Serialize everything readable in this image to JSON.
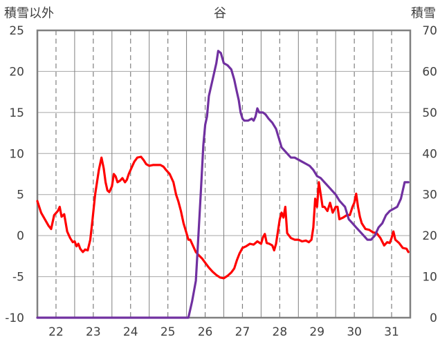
{
  "chart_data": {
    "type": "line",
    "title": "谷",
    "left_axis_label": "積雪以外",
    "right_axis_label": "積雪",
    "left_ylim": [
      -10,
      25
    ],
    "left_yticks": [
      -10,
      -5,
      0,
      5,
      10,
      15,
      20,
      25
    ],
    "right_ylim": [
      0,
      70
    ],
    "right_yticks": [
      0,
      10,
      20,
      30,
      40,
      50,
      60,
      70
    ],
    "xlim": [
      21.5,
      31.5
    ],
    "xticks": [
      22,
      23,
      24,
      25,
      26,
      27,
      28,
      29,
      30,
      31
    ],
    "grid": "dashed vertical, solid horizontal",
    "series": [
      {
        "axis": "left",
        "color": "#ff0000",
        "points": [
          [
            21.5,
            4.2
          ],
          [
            21.6,
            2.8
          ],
          [
            21.7,
            2.0
          ],
          [
            21.8,
            1.2
          ],
          [
            21.87,
            0.8
          ],
          [
            21.95,
            2.5
          ],
          [
            22.05,
            3.0
          ],
          [
            22.1,
            3.5
          ],
          [
            22.15,
            2.3
          ],
          [
            22.22,
            2.6
          ],
          [
            22.3,
            0.5
          ],
          [
            22.38,
            -0.3
          ],
          [
            22.45,
            -0.8
          ],
          [
            22.5,
            -0.7
          ],
          [
            22.55,
            -1.3
          ],
          [
            22.6,
            -1.0
          ],
          [
            22.65,
            -1.6
          ],
          [
            22.72,
            -2.0
          ],
          [
            22.78,
            -1.7
          ],
          [
            22.85,
            -1.8
          ],
          [
            22.92,
            -0.5
          ],
          [
            22.98,
            2.0
          ],
          [
            23.05,
            5.0
          ],
          [
            23.1,
            6.5
          ],
          [
            23.15,
            8.0
          ],
          [
            23.22,
            9.5
          ],
          [
            23.28,
            8.2
          ],
          [
            23.33,
            6.5
          ],
          [
            23.38,
            5.5
          ],
          [
            23.43,
            5.3
          ],
          [
            23.5,
            6.0
          ],
          [
            23.55,
            7.5
          ],
          [
            23.6,
            7.2
          ],
          [
            23.65,
            6.5
          ],
          [
            23.72,
            6.7
          ],
          [
            23.78,
            7.0
          ],
          [
            23.85,
            6.5
          ],
          [
            23.9,
            6.8
          ],
          [
            23.95,
            7.5
          ],
          [
            24.02,
            8.2
          ],
          [
            24.1,
            9.0
          ],
          [
            24.18,
            9.5
          ],
          [
            24.28,
            9.6
          ],
          [
            24.35,
            9.2
          ],
          [
            24.42,
            8.7
          ],
          [
            24.5,
            8.5
          ],
          [
            24.6,
            8.6
          ],
          [
            24.7,
            8.6
          ],
          [
            24.8,
            8.6
          ],
          [
            24.88,
            8.4
          ],
          [
            24.95,
            8.0
          ],
          [
            25.05,
            7.5
          ],
          [
            25.15,
            6.5
          ],
          [
            25.22,
            5.0
          ],
          [
            25.28,
            4.2
          ],
          [
            25.35,
            3.0
          ],
          [
            25.42,
            1.5
          ],
          [
            25.5,
            0.3
          ],
          [
            25.55,
            -0.5
          ],
          [
            25.6,
            -0.5
          ],
          [
            25.68,
            -1.3
          ],
          [
            25.75,
            -2.0
          ],
          [
            25.83,
            -2.4
          ],
          [
            25.92,
            -2.8
          ],
          [
            26.0,
            -3.3
          ],
          [
            26.1,
            -3.9
          ],
          [
            26.2,
            -4.4
          ],
          [
            26.3,
            -4.8
          ],
          [
            26.4,
            -5.1
          ],
          [
            26.5,
            -5.2
          ],
          [
            26.6,
            -4.9
          ],
          [
            26.7,
            -4.5
          ],
          [
            26.78,
            -4.0
          ],
          [
            26.85,
            -3.0
          ],
          [
            26.92,
            -2.2
          ],
          [
            27.0,
            -1.5
          ],
          [
            27.1,
            -1.3
          ],
          [
            27.2,
            -1.0
          ],
          [
            27.3,
            -1.1
          ],
          [
            27.4,
            -0.7
          ],
          [
            27.5,
            -1.0
          ],
          [
            27.55,
            -0.2
          ],
          [
            27.6,
            0.2
          ],
          [
            27.65,
            -0.9
          ],
          [
            27.72,
            -1.0
          ],
          [
            27.8,
            -1.2
          ],
          [
            27.85,
            -1.8
          ],
          [
            27.9,
            -1.0
          ],
          [
            27.95,
            0.5
          ],
          [
            28.0,
            2.0
          ],
          [
            28.05,
            2.8
          ],
          [
            28.1,
            2.2
          ],
          [
            28.15,
            3.5
          ],
          [
            28.2,
            0.3
          ],
          [
            28.25,
            0.0
          ],
          [
            28.3,
            -0.3
          ],
          [
            28.4,
            -0.5
          ],
          [
            28.5,
            -0.5
          ],
          [
            28.6,
            -0.7
          ],
          [
            28.7,
            -0.6
          ],
          [
            28.78,
            -0.8
          ],
          [
            28.85,
            -0.5
          ],
          [
            28.9,
            1.0
          ],
          [
            28.95,
            4.5
          ],
          [
            29.0,
            3.5
          ],
          [
            29.05,
            6.5
          ],
          [
            29.1,
            5.0
          ],
          [
            29.15,
            3.5
          ],
          [
            29.2,
            3.5
          ],
          [
            29.28,
            3.0
          ],
          [
            29.35,
            4.0
          ],
          [
            29.42,
            2.8
          ],
          [
            29.5,
            3.5
          ],
          [
            29.55,
            3.5
          ],
          [
            29.6,
            2.0
          ],
          [
            29.7,
            2.2
          ],
          [
            29.8,
            2.5
          ],
          [
            29.88,
            2.5
          ],
          [
            29.95,
            3.5
          ],
          [
            30.0,
            4.0
          ],
          [
            30.05,
            5.1
          ],
          [
            30.1,
            3.5
          ],
          [
            30.15,
            2.3
          ],
          [
            30.2,
            1.5
          ],
          [
            30.3,
            0.8
          ],
          [
            30.4,
            0.7
          ],
          [
            30.5,
            0.4
          ],
          [
            30.6,
            0.3
          ],
          [
            30.7,
            -0.3
          ],
          [
            30.8,
            -1.2
          ],
          [
            30.88,
            -0.8
          ],
          [
            30.95,
            -0.9
          ],
          [
            31.0,
            -0.3
          ],
          [
            31.05,
            0.5
          ],
          [
            31.1,
            -0.5
          ],
          [
            31.2,
            -0.9
          ],
          [
            31.3,
            -1.5
          ],
          [
            31.4,
            -1.6
          ],
          [
            31.45,
            -2.0
          ]
        ]
      },
      {
        "axis": "right",
        "color": "#7030a0",
        "points": [
          [
            21.5,
            0
          ],
          [
            22.0,
            0
          ],
          [
            23.0,
            0
          ],
          [
            24.0,
            0
          ],
          [
            25.0,
            0
          ],
          [
            25.55,
            0
          ],
          [
            25.6,
            2.0
          ],
          [
            25.65,
            4.0
          ],
          [
            25.7,
            6.5
          ],
          [
            25.75,
            9.0
          ],
          [
            25.8,
            17.0
          ],
          [
            25.88,
            30.0
          ],
          [
            25.95,
            42.0
          ],
          [
            26.0,
            47.0
          ],
          [
            26.05,
            49.0
          ],
          [
            26.1,
            54.0
          ],
          [
            26.15,
            56.0
          ],
          [
            26.2,
            58.0
          ],
          [
            26.25,
            60.0
          ],
          [
            26.3,
            62.0
          ],
          [
            26.35,
            65.0
          ],
          [
            26.42,
            64.5
          ],
          [
            26.5,
            62.0
          ],
          [
            26.6,
            61.5
          ],
          [
            26.7,
            60.5
          ],
          [
            26.78,
            58.0
          ],
          [
            26.85,
            55.0
          ],
          [
            26.9,
            53.0
          ],
          [
            26.95,
            50.0
          ],
          [
            27.0,
            48.5
          ],
          [
            27.05,
            48.0
          ],
          [
            27.15,
            48.0
          ],
          [
            27.25,
            48.5
          ],
          [
            27.3,
            48.0
          ],
          [
            27.35,
            49.0
          ],
          [
            27.4,
            51.0
          ],
          [
            27.45,
            50.0
          ],
          [
            27.55,
            50.0
          ],
          [
            27.62,
            49.5
          ],
          [
            27.7,
            48.5
          ],
          [
            27.8,
            47.5
          ],
          [
            27.9,
            46.0
          ],
          [
            28.0,
            43.0
          ],
          [
            28.05,
            41.5
          ],
          [
            28.15,
            40.5
          ],
          [
            28.25,
            39.5
          ],
          [
            28.3,
            39.0
          ],
          [
            28.4,
            39.0
          ],
          [
            28.5,
            38.5
          ],
          [
            28.6,
            38.0
          ],
          [
            28.7,
            37.5
          ],
          [
            28.8,
            37.0
          ],
          [
            28.9,
            36.0
          ],
          [
            29.0,
            34.5
          ],
          [
            29.1,
            34.0
          ],
          [
            29.2,
            33.0
          ],
          [
            29.3,
            32.0
          ],
          [
            29.4,
            31.0
          ],
          [
            29.5,
            30.0
          ],
          [
            29.6,
            28.5
          ],
          [
            29.7,
            27.5
          ],
          [
            29.75,
            27.0
          ],
          [
            29.85,
            24.0
          ],
          [
            29.95,
            23.0
          ],
          [
            30.05,
            22.0
          ],
          [
            30.15,
            21.0
          ],
          [
            30.25,
            20.0
          ],
          [
            30.35,
            19.0
          ],
          [
            30.45,
            19.0
          ],
          [
            30.55,
            20.0
          ],
          [
            30.65,
            22.0
          ],
          [
            30.75,
            23.0
          ],
          [
            30.85,
            25.0
          ],
          [
            30.95,
            26.0
          ],
          [
            31.05,
            26.5
          ],
          [
            31.15,
            27.0
          ],
          [
            31.25,
            29.0
          ],
          [
            31.35,
            33.0
          ],
          [
            31.45,
            33.0
          ]
        ]
      }
    ]
  }
}
